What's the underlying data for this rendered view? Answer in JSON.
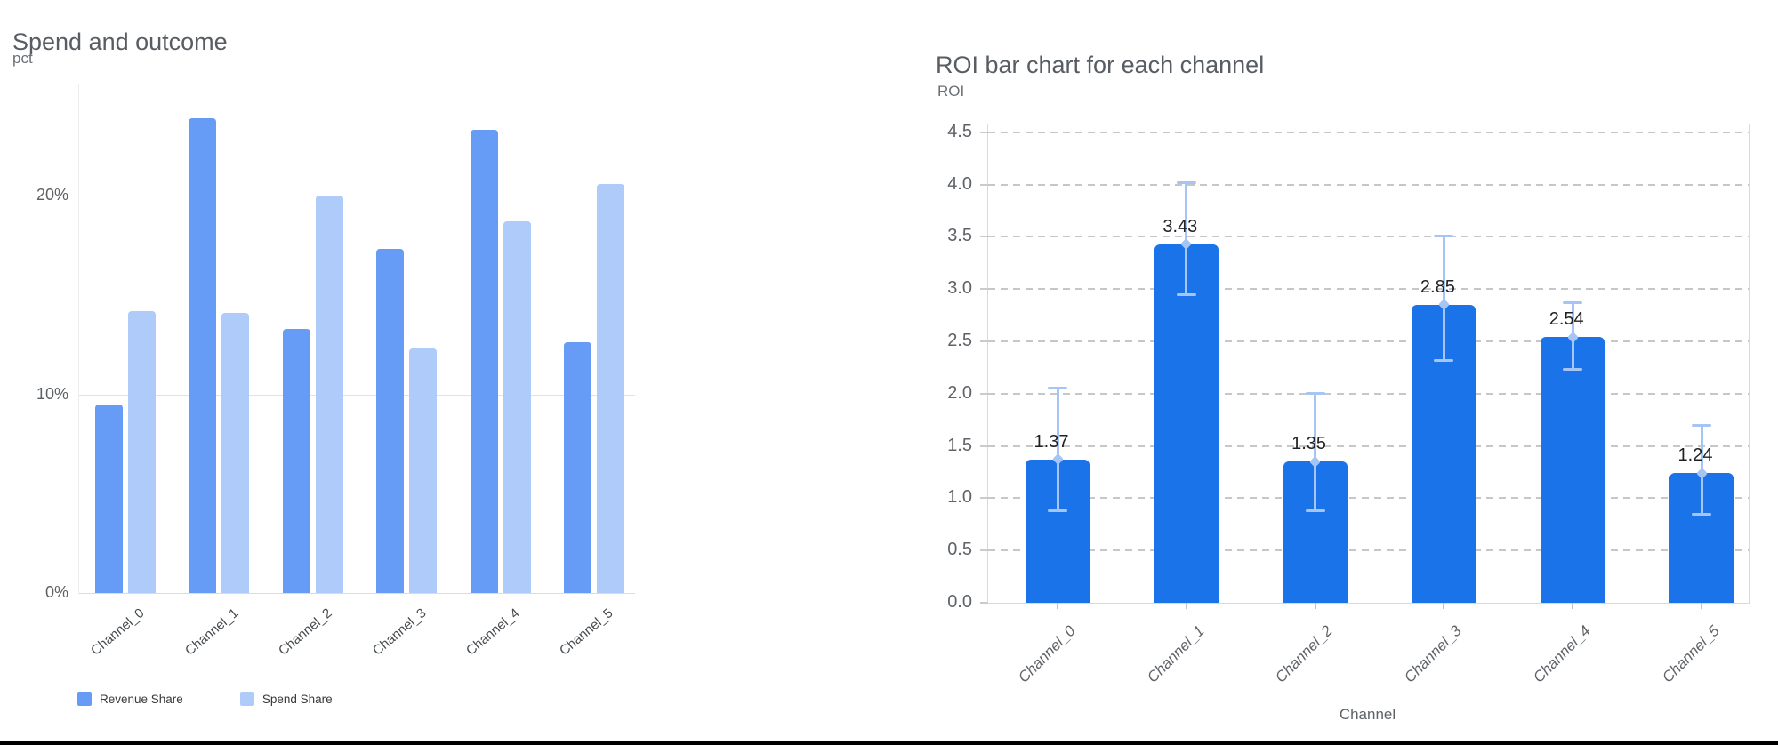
{
  "page": {
    "background": "#ffffff",
    "bottom_divider_color": "#000000"
  },
  "chart_data": [
    {
      "type": "bar",
      "title": "Spend and outcome",
      "ylabel": "pct",
      "xlabel": "",
      "categories": [
        "Channel_0",
        "Channel_1",
        "Channel_2",
        "Channel_3",
        "Channel_4",
        "Channel_5"
      ],
      "series": [
        {
          "name": "Revenue Share",
          "color": "#669CF6",
          "values": [
            9.5,
            23.9,
            13.3,
            17.3,
            23.3,
            12.6
          ]
        },
        {
          "name": "Spend Share",
          "color": "#AECBFA",
          "values": [
            14.2,
            14.1,
            20.0,
            12.3,
            18.7,
            20.6
          ]
        }
      ],
      "yticks": [
        {
          "value": 0,
          "label": "0%"
        },
        {
          "value": 10,
          "label": "10%"
        },
        {
          "value": 20,
          "label": "20%"
        }
      ],
      "ylim": [
        0,
        25.6
      ],
      "grid": "horizontal-solid",
      "legend_position": "bottom-left"
    },
    {
      "type": "bar",
      "title": "ROI bar chart for each channel",
      "ylabel": "ROI",
      "xlabel": "Channel",
      "categories": [
        "Channel_0",
        "Channel_1",
        "Channel_2",
        "Channel_3",
        "Channel_4",
        "Channel_5"
      ],
      "values": [
        1.37,
        3.43,
        1.35,
        2.85,
        2.54,
        1.24
      ],
      "data_labels": [
        "1.37",
        "3.43",
        "1.35",
        "2.85",
        "2.54",
        "1.24"
      ],
      "error_low": [
        0.88,
        2.95,
        0.88,
        2.32,
        2.23,
        0.85
      ],
      "error_high": [
        2.05,
        4.02,
        2.0,
        3.51,
        2.87,
        1.7
      ],
      "bar_color": "#1A73E8",
      "error_color": "#A6C5F7",
      "yticks": [
        {
          "value": 0.0,
          "label": "0.0"
        },
        {
          "value": 0.5,
          "label": "0.5"
        },
        {
          "value": 1.0,
          "label": "1.0"
        },
        {
          "value": 1.5,
          "label": "1.5"
        },
        {
          "value": 2.0,
          "label": "2.0"
        },
        {
          "value": 2.5,
          "label": "2.5"
        },
        {
          "value": 3.0,
          "label": "3.0"
        },
        {
          "value": 3.5,
          "label": "3.5"
        },
        {
          "value": 4.0,
          "label": "4.0"
        },
        {
          "value": 4.5,
          "label": "4.5"
        }
      ],
      "ylim": [
        0,
        4.57
      ],
      "grid": "horizontal-dashed",
      "legend_position": "none"
    }
  ]
}
